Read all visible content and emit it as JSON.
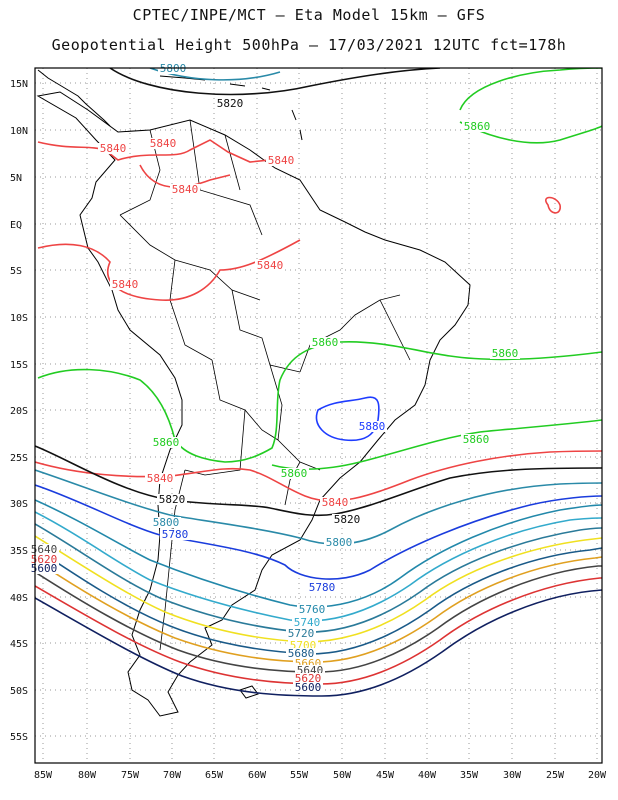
{
  "header": {
    "line1": "CPTEC/INPE/MCT –  Eta Model 15km – GFS",
    "line2": "Geopotential Height 500hPa – 17/03/2021 12UTC fct=178h"
  },
  "axes": {
    "lat_ticks": [
      "15N",
      "10N",
      "5N",
      "EQ",
      "5S",
      "10S",
      "15S",
      "20S",
      "25S",
      "30S",
      "35S",
      "40S",
      "45S",
      "50S",
      "55S"
    ],
    "lon_ticks": [
      "85W",
      "80W",
      "75W",
      "70W",
      "65W",
      "60W",
      "55W",
      "50W",
      "45W",
      "40W",
      "35W",
      "30W",
      "25W",
      "20W"
    ]
  },
  "contours": {
    "colors": {
      "5880": "#1e3cff",
      "5860": "#22cc22",
      "5840": "#ee4444",
      "5820": "#111111",
      "5800": "#2a8aa8",
      "5780": "#1a3cdd",
      "5760": "#2288aa",
      "5740": "#33aacc",
      "5720": "#2a7a99",
      "5700": "#f0e020",
      "5680": "#1a5a88",
      "5660": "#e0a020",
      "5640": "#444444",
      "5620": "#dd3333",
      "5600": "#102060"
    },
    "labels": [
      {
        "text": "5800"
      },
      {
        "text": "5820"
      },
      {
        "text": "5840"
      },
      {
        "text": "5840"
      },
      {
        "text": "5840"
      },
      {
        "text": "5840"
      },
      {
        "text": "5840"
      },
      {
        "text": "5840"
      },
      {
        "text": "5860"
      },
      {
        "text": "5860"
      },
      {
        "text": "5860"
      },
      {
        "text": "5860"
      },
      {
        "text": "5860"
      },
      {
        "text": "5860"
      },
      {
        "text": "5880"
      },
      {
        "text": "5840"
      },
      {
        "text": "5820"
      },
      {
        "text": "5840"
      },
      {
        "text": "5820"
      },
      {
        "text": "5800"
      },
      {
        "text": "5780"
      },
      {
        "text": "5800"
      },
      {
        "text": "5780"
      },
      {
        "text": "5760"
      },
      {
        "text": "5740"
      },
      {
        "text": "5720"
      },
      {
        "text": "5700"
      },
      {
        "text": "5680"
      },
      {
        "text": "5660"
      },
      {
        "text": "5640"
      },
      {
        "text": "5620"
      },
      {
        "text": "5600"
      },
      {
        "text": "5640"
      },
      {
        "text": "5620"
      },
      {
        "text": "5600"
      }
    ]
  }
}
